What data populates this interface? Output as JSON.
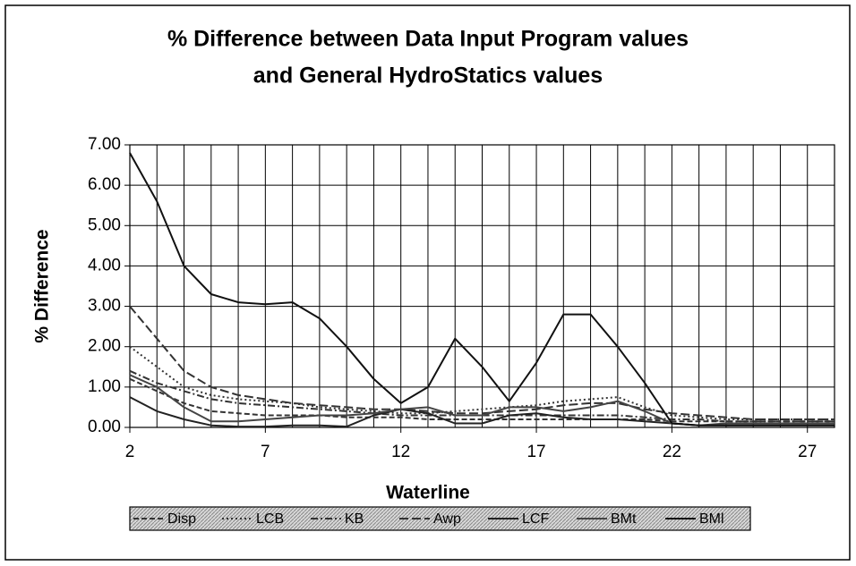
{
  "chart_data": {
    "type": "line",
    "title": [
      "% Difference between Data Input Program values",
      "and General HydroStatics values"
    ],
    "x_label": "Waterline",
    "y_label": "% Difference",
    "x": [
      2,
      3,
      4,
      5,
      6,
      7,
      8,
      9,
      10,
      11,
      12,
      13,
      14,
      15,
      16,
      17,
      18,
      19,
      20,
      21,
      22,
      23,
      24,
      25,
      26,
      27,
      28
    ],
    "xlim": [
      2,
      28
    ],
    "xticks": [
      2,
      7,
      12,
      17,
      22,
      27
    ],
    "ylim": [
      0,
      7
    ],
    "yticks": [
      {
        "value": 0,
        "label": "0.00"
      },
      {
        "value": 1,
        "label": "1.00"
      },
      {
        "value": 2,
        "label": "2.00"
      },
      {
        "value": 3,
        "label": "3.00"
      },
      {
        "value": 4,
        "label": "4.00"
      },
      {
        "value": 5,
        "label": "5.00"
      },
      {
        "value": 6,
        "label": "6.00"
      },
      {
        "value": 7,
        "label": "7.00"
      }
    ],
    "grid": true,
    "legend": "bottom",
    "series": [
      {
        "name": "Disp",
        "color": "#333333",
        "dash": "6 3",
        "values": [
          1.2,
          0.9,
          0.6,
          0.4,
          0.35,
          0.3,
          0.3,
          0.3,
          0.25,
          0.25,
          0.25,
          0.2,
          0.2,
          0.2,
          0.2,
          0.2,
          0.2,
          0.2,
          0.2,
          0.2,
          0.15,
          0.15,
          0.15,
          0.15,
          0.15,
          0.15,
          0.15
        ]
      },
      {
        "name": "LCB",
        "color": "#333333",
        "dash": "2 3",
        "values": [
          2.0,
          1.5,
          1.0,
          0.8,
          0.7,
          0.65,
          0.6,
          0.5,
          0.45,
          0.4,
          0.35,
          0.35,
          0.4,
          0.45,
          0.5,
          0.55,
          0.65,
          0.7,
          0.75,
          0.5,
          0.3,
          0.25,
          0.2,
          0.2,
          0.2,
          0.2,
          0.2
        ]
      },
      {
        "name": "KB",
        "color": "#333333",
        "dash": "8 3 2 3",
        "values": [
          1.4,
          1.1,
          0.9,
          0.7,
          0.6,
          0.55,
          0.5,
          0.45,
          0.4,
          0.35,
          0.3,
          0.3,
          0.3,
          0.3,
          0.3,
          0.3,
          0.3,
          0.3,
          0.3,
          0.25,
          0.2,
          0.2,
          0.15,
          0.15,
          0.15,
          0.15,
          0.15
        ]
      },
      {
        "name": "Awp",
        "color": "#333333",
        "dash": "10 4",
        "values": [
          3.0,
          2.2,
          1.4,
          1.0,
          0.8,
          0.7,
          0.6,
          0.55,
          0.5,
          0.45,
          0.45,
          0.4,
          0.35,
          0.35,
          0.4,
          0.45,
          0.55,
          0.6,
          0.6,
          0.45,
          0.35,
          0.3,
          0.25,
          0.2,
          0.2,
          0.2,
          0.2
        ]
      },
      {
        "name": "LCF",
        "color": "#222222",
        "dash": "none",
        "values": [
          0.75,
          0.4,
          0.2,
          0.05,
          0.02,
          0.02,
          0.05,
          0.05,
          0.02,
          0.3,
          0.45,
          0.35,
          0.1,
          0.1,
          0.3,
          0.35,
          0.25,
          0.2,
          0.2,
          0.15,
          0.1,
          0.05,
          0.05,
          0.05,
          0.05,
          0.05,
          0.05
        ]
      },
      {
        "name": "BMt",
        "color": "#444444",
        "dash": "none",
        "values": [
          1.3,
          1.0,
          0.5,
          0.15,
          0.15,
          0.2,
          0.25,
          0.3,
          0.3,
          0.35,
          0.45,
          0.5,
          0.3,
          0.3,
          0.5,
          0.5,
          0.4,
          0.5,
          0.65,
          0.4,
          0.1,
          0.05,
          0.1,
          0.1,
          0.1,
          0.1,
          0.1
        ]
      },
      {
        "name": "BMl",
        "color": "#111111",
        "dash": "none",
        "values": [
          6.8,
          5.6,
          4.0,
          3.3,
          3.1,
          3.05,
          3.1,
          2.7,
          2.0,
          1.2,
          0.6,
          1.0,
          2.2,
          1.5,
          0.65,
          1.6,
          2.8,
          2.8,
          2.0,
          1.1,
          0.1,
          0.05,
          0.05,
          0.05,
          0.05,
          0.05,
          0.05
        ]
      }
    ]
  }
}
